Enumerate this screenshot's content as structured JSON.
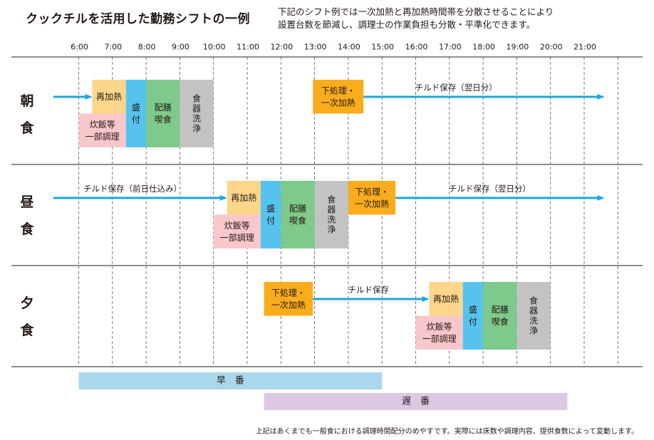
{
  "title": "クックチルを活用した勤務シフトの一例",
  "subtitle": {
    "line1": "下記のシフト例では一次加熱と再加熱時間帯を分散させることにより",
    "line2": "設置台数を節減し、調理士の作業負担も分散・平準化できます。"
  },
  "footer": "上記はあくまでも一般食における調理時間配分のめやすです。実際には床数や調理内容、提供食数によって変動します。",
  "colors": {
    "reheat": "#fdd58b",
    "rice": "#f8c7cc",
    "plate": "#55c3ee",
    "serve": "#7ec98b",
    "wash": "#c3c3c3",
    "prep": "#f9ac1c",
    "arrow": "#1ba6e0",
    "early": "#a9d8ec",
    "late": "#dcc8e3",
    "grid": "#555555"
  },
  "chart_data": {
    "type": "gantt",
    "time_range": [
      6,
      21
    ],
    "time_ticks": [
      "6:00",
      "7:00",
      "8:00",
      "9:00",
      "10:00",
      "11:00",
      "12:00",
      "13:00",
      "14:00",
      "15:00",
      "16:00",
      "17:00",
      "18:00",
      "19:00",
      "20:00",
      "21:00"
    ],
    "rows": [
      {
        "label": [
          "朝",
          "食"
        ],
        "arrows": [
          {
            "start": 5.25,
            "end": 6.4,
            "label": ""
          },
          {
            "start": 14.45,
            "end": 21.6,
            "label": "チルド保存（翌日分）",
            "label_at": 17.2
          }
        ],
        "tasks": [
          {
            "kind": "reheat",
            "start": 6.4,
            "end": 7.4,
            "level": "top",
            "lines": [
              "再加熱"
            ]
          },
          {
            "kind": "rice",
            "start": 6.0,
            "end": 7.4,
            "level": "bottom",
            "lines": [
              "炊飯等",
              "一部調理"
            ]
          },
          {
            "kind": "plate",
            "start": 7.4,
            "end": 8.0,
            "level": "full",
            "lines": [
              "盛",
              "付"
            ]
          },
          {
            "kind": "serve",
            "start": 8.0,
            "end": 9.0,
            "level": "full",
            "lines": [
              "配膳",
              "喫食"
            ]
          },
          {
            "kind": "wash",
            "start": 9.0,
            "end": 10.0,
            "level": "full",
            "lines": [
              "食",
              "器",
              "洗",
              "浄"
            ]
          },
          {
            "kind": "prep",
            "start": 12.95,
            "end": 14.45,
            "level": "mid",
            "lines": [
              "下処理・",
              "一次加熱"
            ]
          }
        ]
      },
      {
        "label": [
          "昼",
          "食"
        ],
        "arrows": [
          {
            "start": 5.25,
            "end": 10.4,
            "label": "チルド保存（前日仕込み）",
            "label_at": 7.6
          },
          {
            "start": 15.4,
            "end": 21.6,
            "label": "チルド保存（翌日分）",
            "label_at": 18.2
          }
        ],
        "tasks": [
          {
            "kind": "reheat",
            "start": 10.4,
            "end": 11.4,
            "level": "top",
            "lines": [
              "再加熱"
            ]
          },
          {
            "kind": "rice",
            "start": 10.0,
            "end": 11.4,
            "level": "bottom",
            "lines": [
              "炊飯等",
              "一部調理"
            ]
          },
          {
            "kind": "plate",
            "start": 11.4,
            "end": 12.0,
            "level": "full",
            "lines": [
              "盛",
              "付"
            ]
          },
          {
            "kind": "serve",
            "start": 12.0,
            "end": 13.0,
            "level": "full",
            "lines": [
              "配膳",
              "喫食"
            ]
          },
          {
            "kind": "wash",
            "start": 13.0,
            "end": 14.0,
            "level": "full",
            "lines": [
              "食",
              "器",
              "洗",
              "浄"
            ]
          },
          {
            "kind": "prep",
            "start": 14.0,
            "end": 15.4,
            "level": "mid",
            "lines": [
              "下処理・",
              "一次加熱"
            ]
          }
        ]
      },
      {
        "label": [
          "夕",
          "食"
        ],
        "arrows": [
          {
            "start": 12.95,
            "end": 16.4,
            "label": "チルド保存",
            "label_at": 14.6
          }
        ],
        "tasks": [
          {
            "kind": "prep",
            "start": 11.5,
            "end": 12.95,
            "level": "mid",
            "lines": [
              "下処理・",
              "一次加熱"
            ]
          },
          {
            "kind": "reheat",
            "start": 16.4,
            "end": 17.4,
            "level": "top",
            "lines": [
              "再加熱"
            ]
          },
          {
            "kind": "rice",
            "start": 16.0,
            "end": 17.4,
            "level": "bottom",
            "lines": [
              "炊飯等",
              "一部調理"
            ]
          },
          {
            "kind": "plate",
            "start": 17.4,
            "end": 18.0,
            "level": "full",
            "lines": [
              "盛",
              "付"
            ]
          },
          {
            "kind": "serve",
            "start": 18.0,
            "end": 19.0,
            "level": "full",
            "lines": [
              "配膳",
              "喫食"
            ]
          },
          {
            "kind": "wash",
            "start": 19.0,
            "end": 20.0,
            "level": "full",
            "lines": [
              "食",
              "器",
              "洗",
              "浄"
            ]
          }
        ]
      }
    ],
    "shifts": [
      {
        "name": "早　番",
        "kind": "early",
        "start": 6.0,
        "end": 15.0
      },
      {
        "name": "遅　番",
        "kind": "late",
        "start": 11.5,
        "end": 20.5
      }
    ]
  }
}
